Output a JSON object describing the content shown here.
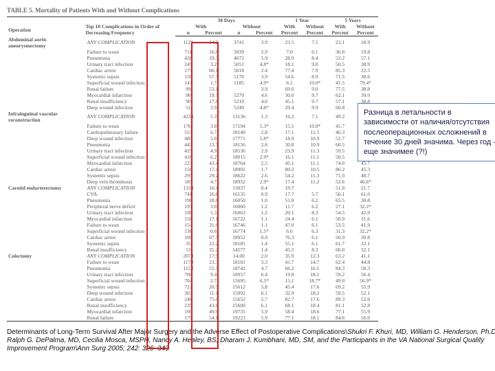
{
  "table_title": "TABLE 5. Mortality of Patients With and Without Complications",
  "header": {
    "periods": [
      "30 Days",
      "1 Year",
      "5 Years"
    ],
    "op_col": "Operation",
    "comp_col": "Top 10 Complications in Order of Decreasing Frequency",
    "sub": [
      "With",
      "",
      "Without",
      "",
      "With",
      "Without",
      "With",
      "Without"
    ],
    "sub2": [
      "n",
      "Percent",
      "n",
      "Percent",
      "Percent",
      "Percent",
      "Percent",
      "Percent"
    ]
  },
  "operations": [
    {
      "name": "Abdominal aortic aneurysmectomy",
      "rows": [
        [
          "ANY COMPLICATION",
          "1129",
          "14.2",
          "3741",
          "3.9",
          "23.5",
          "7.5",
          "23.1",
          "18.9"
        ],
        [
          "Failure to wean",
          "711",
          "16.8",
          "3939",
          "2.9",
          "7.0",
          "6.1",
          "36.0",
          "19.8"
        ],
        [
          "Pneumonia",
          "428",
          "19.3",
          "4672",
          "5.9",
          "28.9",
          "8.4",
          "53.2",
          "57.1"
        ],
        [
          "Urinary tract infection",
          "249",
          "3.2",
          "5051",
          "4.8*",
          "18.1",
          "9.0",
          "50.5",
          "38.9"
        ],
        [
          "Cardiac arrest",
          "177",
          "66.1",
          "5018",
          "2.4",
          "77.4",
          "7.9",
          "85.3",
          "22.5"
        ],
        [
          "Systemic sepsis",
          "156",
          "57.7",
          "5170",
          "3.9",
          "54.6",
          "8.9",
          "71.5",
          "38.6"
        ],
        [
          "Superficial wound infection",
          "147",
          "1.7",
          "5185",
          "4.9*",
          "6.5",
          "10.0*",
          "41.5",
          "79.4*"
        ],
        [
          "Renal failure",
          "99",
          "53.1",
          "",
          "3.9",
          "69.0",
          "9.0",
          "77.5",
          "38.8"
        ],
        [
          "Myocardial infarction",
          "90",
          "19.7",
          "5270",
          "4.6",
          "30.0",
          "9.7",
          "62.1",
          "39.0"
        ],
        [
          "Renal insufficiency",
          "90",
          "17.8",
          "5210",
          "4.0",
          "45.1",
          "9.7",
          "57.1",
          "38.8"
        ],
        [
          "Deep wound infection",
          "51",
          "3.9",
          "5249",
          "4.8*",
          "29.4",
          "9.9",
          "60.8",
          "39.2"
        ]
      ]
    },
    {
      "name": "Infrainguinal vascular reconstruction",
      "rows": [
        [
          "ANY COMPLICATION",
          "4238",
          "5.3",
          "13136",
          "1.3",
          "16.2",
          "7.1",
          "49.2",
          "37.6"
        ],
        [
          "Failure to wean",
          "1761",
          "3.8",
          "17194",
          "5.3*",
          "15.5",
          "10.8*",
          "45.7",
          "46.5*"
        ],
        [
          "Cardiopulmonary failure",
          "557",
          "6.7",
          "18140",
          "2.8",
          "17.1",
          "11.5",
          "46.3",
          "46.7*"
        ],
        [
          "Deep wound infection",
          "489",
          "5.0",
          "17771",
          "5.8*",
          "18.9",
          "10.9",
          "52.7",
          "44.7"
        ],
        [
          "Pneumonia",
          "447",
          "13.7",
          "18156",
          "2.6",
          "30.8",
          "10.9",
          "60.5",
          "46.7"
        ],
        [
          "Urinary tract infection",
          "425",
          "4.9",
          "18536",
          "2.9",
          "23.9",
          "11.3",
          "59.5",
          "45.8"
        ],
        [
          "Superficial wound infection",
          "418",
          "6.2",
          "18015",
          "2.9*",
          "16.1",
          "11.1",
          "50.5",
          "46.6*"
        ],
        [
          "Myocardial infarction",
          "223",
          "43.4",
          "18764",
          "2.5",
          "45.1",
          "11.1",
          "74.0",
          "45.7"
        ],
        [
          "Cardiac arrest",
          "158",
          "17.4",
          "18901",
          "1.7",
          "80.2",
          "10.5",
          "86.2",
          "45.3"
        ],
        [
          "Systemic sepsis",
          "295",
          "29.2",
          "18622",
          "2.6",
          "54.2",
          "11.3",
          "71.0",
          "48.7"
        ],
        [
          "Deep vein thrombosis",
          "185",
          "4.7",
          "18952",
          "2.9*",
          "17.4",
          "11.2",
          "52.6",
          "46.6*"
        ]
      ]
    },
    {
      "name": "Carotid endarterectomy",
      "rows": [
        [
          "ANY COMPLICATION",
          "1338",
          "10.4",
          "13037",
          "0.4",
          "19.7",
          "",
          "51.0",
          "21.7"
        ],
        [
          "CVA",
          "741",
          "16.8",
          "16135",
          "0.9",
          "17.7",
          "5.7",
          "56.1",
          "61.0"
        ],
        [
          "Pneumonia",
          "198",
          "18.8",
          "16050",
          "1.0",
          "51.8",
          "6.2",
          "65.5",
          "30.8"
        ],
        [
          "Peripheral nerve deficit",
          "197",
          "3.0",
          "16060",
          "1.2",
          "11.7",
          "6.2",
          "27.1",
          "32.2*"
        ],
        [
          "Urinary tract infection",
          "198",
          "5.3",
          "16063",
          "1.2",
          "20.1",
          "8.3",
          "54.5",
          "42.0"
        ],
        [
          "Myocardial infarction",
          "158",
          "17.1",
          "16722",
          "1.1",
          "24.4",
          "6.1",
          "50.9",
          "31.6"
        ],
        [
          "Failure to wean",
          "154",
          "31.6",
          "16746",
          "1.1",
          "47.0",
          "6.1",
          "53.5",
          "41.9"
        ],
        [
          "Superficial wound infection",
          "136",
          "0.0",
          "16774",
          "1.5*",
          "6.6",
          "6.3",
          "31.3",
          "32.2*"
        ],
        [
          "Cardiac arrest",
          "106",
          "67.7",
          "18952",
          "0.9",
          "76.3",
          "6.1",
          "50.9",
          "30.8"
        ],
        [
          "Systemic sepsis",
          "35",
          "22.2",
          "18185",
          "1.4",
          "55.1",
          "6.1",
          "61.7",
          "32.1"
        ],
        [
          "Renal insufficiency",
          "53",
          "35.2",
          "14577",
          "1.4",
          "45.5",
          "8.3",
          "60.0",
          "32.1"
        ]
      ]
    },
    {
      "name": "Colectomy",
      "rows": [
        [
          "ANY COMPLICATION",
          "2078",
          "17.9",
          "14.00",
          "2.0",
          "35.9",
          "12.3",
          "63.2",
          "41.1"
        ],
        [
          "Failure to wean",
          "1179",
          "23.3",
          "18181",
          "3.3",
          "41.7",
          "14.7",
          "62.4",
          "44.8"
        ],
        [
          "Pneumonia",
          "1153",
          "55.5",
          "18742",
          "4.7",
          "66.2",
          "16.1",
          "84.3",
          "50.3"
        ],
        [
          "Urinary tract infection",
          "708",
          "9.4",
          "18957",
          "6.4",
          "19.8",
          "18.1",
          "59.2",
          "56.4"
        ],
        [
          "Superficial wound infection",
          "704",
          "2.7",
          "15695",
          "6.5*",
          "15.1",
          "18.7*",
          "49.0",
          "56.9*"
        ],
        [
          "Systemic sepsis",
          "722",
          "20.5",
          "15612",
          "5.8",
          "45.4",
          "17.6",
          "69.2",
          "55.9"
        ],
        [
          "Deep wound infection",
          "303",
          "11.1",
          "15092",
          "6.1",
          "32.9",
          "18.2",
          "59.5",
          "52.1"
        ],
        [
          "Cardiac arrest",
          "248",
          "75.6",
          "15652",
          "5.7",
          "82.7",
          "17.6",
          "89.3",
          "52.0"
        ],
        [
          "Renal insufficiency",
          "235",
          "43.8",
          "15600",
          "6.1",
          "68.1",
          "18.4",
          "81.1",
          "52.8"
        ],
        [
          "Myocardial infarction",
          "190",
          "49.6",
          "19735",
          "5.9",
          "58.4",
          "18.6",
          "77.1",
          "55.9"
        ],
        [
          "Renal failure",
          "179",
          "54.1",
          "19223",
          "5.9",
          "77.1",
          "18.1",
          "84.6",
          "56.0"
        ]
      ]
    }
  ],
  "callout_text": "Разница в летальности в зависимости от наличия/отсутствия послеоперационных осложнений в течение 30 дней значима. Через год – еще значимее (?!)",
  "footer_main": "Determinants of Long-Term Survival After Major Surgery and the Adverse Effect of Postoperative Complications\\",
  "footer_authors": "Shukri F. Khuri, MD, William G. Henderson, Ph.D, Ralph G. DePalma, MD, Cecilia Mosca, MSPH, Nancy A. Healey, BS, Dharam J. Kumbhani, MD, SM, and the Participants in the VA National Surgical Quality Improvement Program\\",
  "footer_journal": "Ann Surg 2005; 242: 326–343",
  "redbox_style": {
    "top1": 51,
    "left1": 203,
    "w1": 29,
    "h1": 443,
    "top2": 51,
    "left2": 268,
    "w2": 36,
    "h2": 443
  },
  "colors": {
    "red": "#d02020",
    "callout_border": "#5b7bb0"
  }
}
